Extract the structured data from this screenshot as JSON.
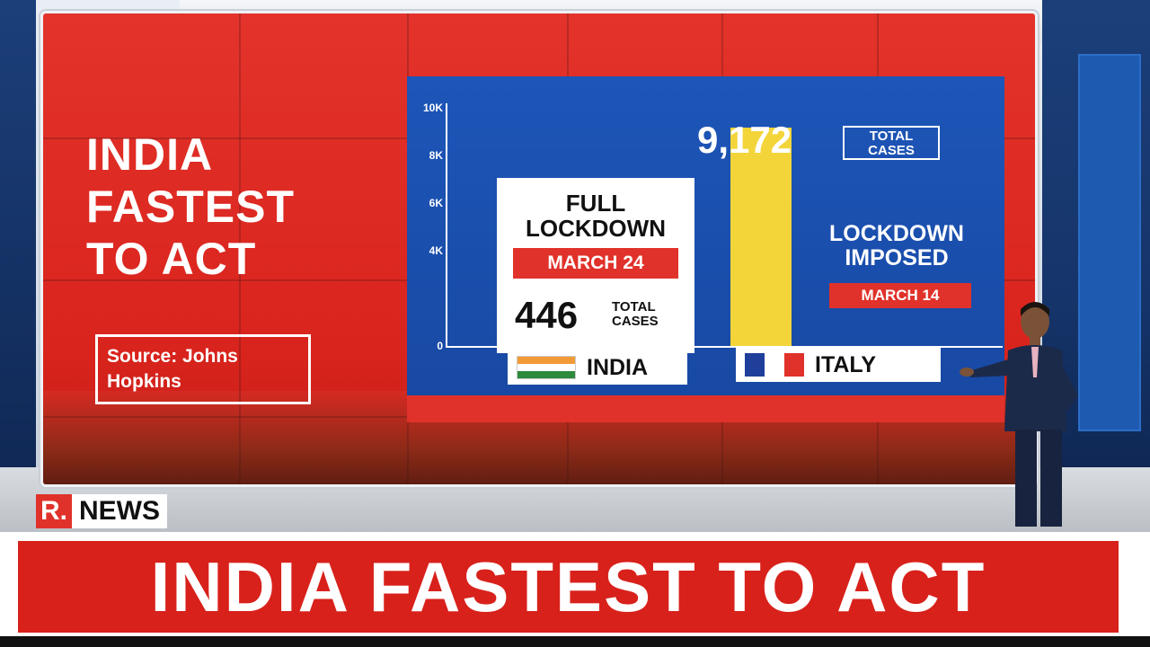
{
  "wall": {
    "headline_lines": [
      "INDIA",
      "FASTEST",
      "TO ACT"
    ],
    "source_lines": [
      "Source: Johns",
      "Hopkins"
    ]
  },
  "chart_data": {
    "type": "bar",
    "categories": [
      "INDIA",
      "ITALY"
    ],
    "values": [
      446,
      9172
    ],
    "ylim": [
      0,
      10000
    ],
    "y_ticks": [
      "0",
      "4K",
      "6K",
      "8K",
      "10K"
    ],
    "y_tick_values": [
      0,
      4000,
      6000,
      8000,
      10000
    ],
    "bar_colors": [
      "#e0322a",
      "#f3d53a"
    ]
  },
  "india": {
    "title_lines": [
      "FULL",
      "LOCKDOWN"
    ],
    "date": "MARCH 24",
    "count": "446",
    "count_label_lines": [
      "TOTAL",
      "CASES"
    ],
    "label": "INDIA"
  },
  "italy": {
    "count": "9,172",
    "count_label_lines": [
      "TOTAL",
      "CASES"
    ],
    "title_lines": [
      "LOCKDOWN",
      "IMPOSED"
    ],
    "date": "MARCH 14",
    "label": "ITALY"
  },
  "logo": {
    "mark": "R.",
    "name": "NEWS"
  },
  "ticker": {
    "text": "INDIA FASTEST TO ACT"
  },
  "colors": {
    "brand_red": "#d8211b",
    "panel_blue": "#1d56b8",
    "bar_yellow": "#f3d53a"
  }
}
